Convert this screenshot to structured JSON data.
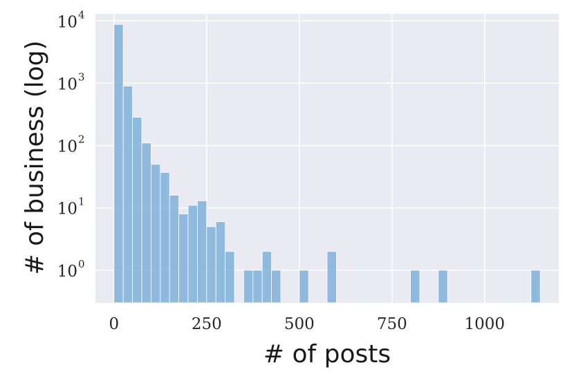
{
  "chart_data": {
    "type": "bar",
    "subtype": "histogram",
    "title": "",
    "xlabel": "# of posts",
    "ylabel": "# of business (log)",
    "xlim": [
      -50,
      1200
    ],
    "ylim": [
      0.3,
      13000
    ],
    "yscale": "log",
    "grid": true,
    "bin_width": 25,
    "x_ticks": [
      {
        "value": 0,
        "label": "0"
      },
      {
        "value": 250,
        "label": "250"
      },
      {
        "value": 500,
        "label": "500"
      },
      {
        "value": 750,
        "label": "750"
      },
      {
        "value": 1000,
        "label": "1000"
      }
    ],
    "y_ticks": [
      {
        "value": 1,
        "base": "10",
        "exp": "0"
      },
      {
        "value": 10,
        "base": "10",
        "exp": "1"
      },
      {
        "value": 100,
        "base": "10",
        "exp": "2"
      },
      {
        "value": 1000,
        "base": "10",
        "exp": "3"
      },
      {
        "value": 10000,
        "base": "10",
        "exp": "4"
      }
    ],
    "bins": [
      {
        "x0": 0,
        "x1": 25,
        "count": 8800
      },
      {
        "x0": 25,
        "x1": 50,
        "count": 900
      },
      {
        "x0": 50,
        "x1": 75,
        "count": 285
      },
      {
        "x0": 75,
        "x1": 100,
        "count": 110
      },
      {
        "x0": 100,
        "x1": 125,
        "count": 50
      },
      {
        "x0": 125,
        "x1": 150,
        "count": 37
      },
      {
        "x0": 150,
        "x1": 175,
        "count": 16
      },
      {
        "x0": 175,
        "x1": 200,
        "count": 8
      },
      {
        "x0": 200,
        "x1": 225,
        "count": 11
      },
      {
        "x0": 225,
        "x1": 250,
        "count": 13
      },
      {
        "x0": 250,
        "x1": 275,
        "count": 5
      },
      {
        "x0": 275,
        "x1": 300,
        "count": 6
      },
      {
        "x0": 300,
        "x1": 325,
        "count": 2
      },
      {
        "x0": 325,
        "x1": 350,
        "count": 0
      },
      {
        "x0": 350,
        "x1": 375,
        "count": 1
      },
      {
        "x0": 375,
        "x1": 400,
        "count": 1
      },
      {
        "x0": 400,
        "x1": 425,
        "count": 2
      },
      {
        "x0": 425,
        "x1": 450,
        "count": 1
      },
      {
        "x0": 500,
        "x1": 525,
        "count": 1
      },
      {
        "x0": 575,
        "x1": 600,
        "count": 2
      },
      {
        "x0": 800,
        "x1": 825,
        "count": 1
      },
      {
        "x0": 875,
        "x1": 900,
        "count": 1
      },
      {
        "x0": 1125,
        "x1": 1150,
        "count": 1
      }
    ],
    "colors": {
      "bar": "#7fb2da",
      "background": "#eaeaf2",
      "grid": "#ffffff"
    }
  }
}
